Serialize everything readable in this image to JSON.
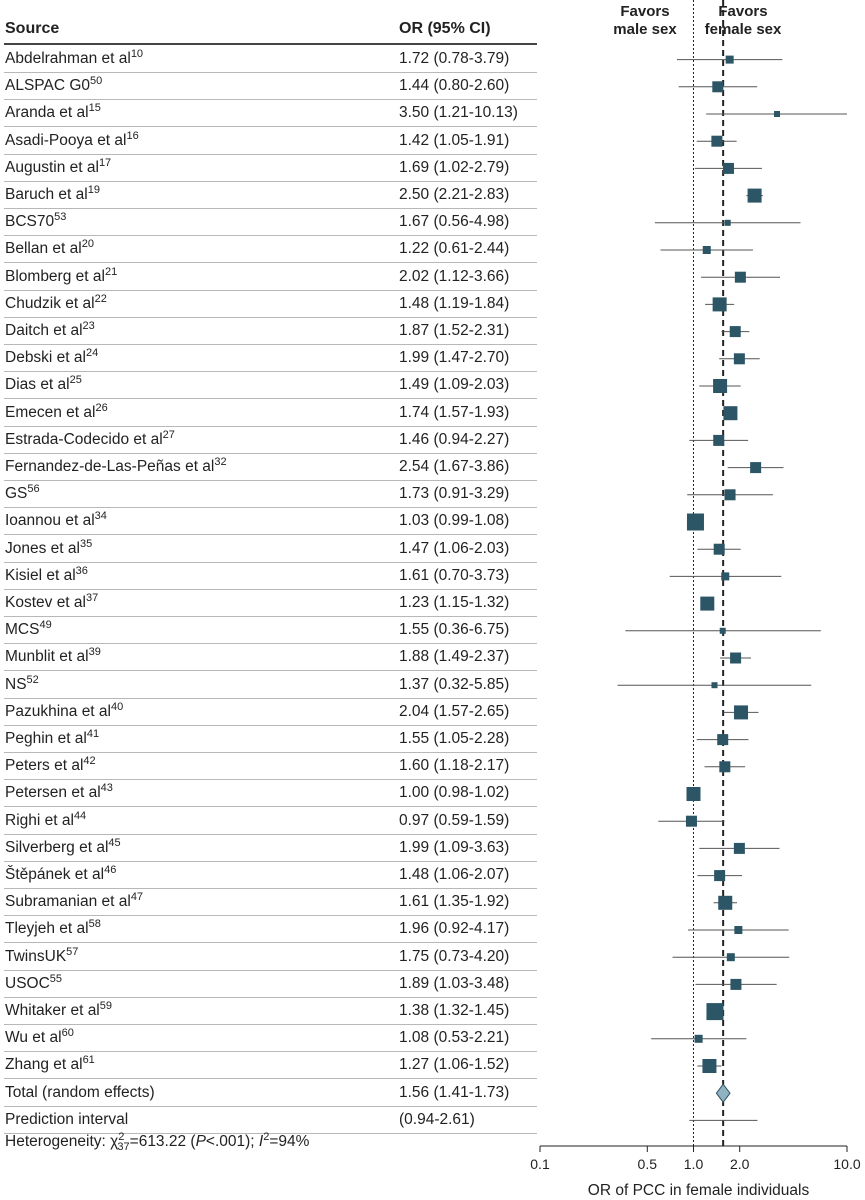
{
  "header": {
    "source": "Source",
    "or": "OR (95% CI)"
  },
  "favors": {
    "male": [
      "Favors",
      "male sex"
    ],
    "female": [
      "Favors",
      "female sex"
    ]
  },
  "footer": {
    "heterogeneity_label": "Heterogeneity: χ",
    "chi_sub": "37",
    "chi_sup": "2",
    "chi_value": "=613.22 (",
    "p_letter": "P",
    "p_value": "<.001); ",
    "i_letter": "I",
    "i_sup": "2",
    "i_value": "=94%"
  },
  "chart_data": {
    "type": "forest",
    "xlabel": "OR of PCC in female individuals",
    "xscale": "log",
    "xlim": [
      0.1,
      10.0
    ],
    "xticks": [
      {
        "v": 0.1,
        "label": "0.1"
      },
      {
        "v": 0.5,
        "label": "0.5"
      },
      {
        "v": 1.0,
        "label": "1.0"
      },
      {
        "v": 2.0,
        "label": "2.0"
      },
      {
        "v": 10.0,
        "label": "10.0"
      }
    ],
    "null_line": 1.0,
    "pooled_line": 1.56,
    "studies": [
      {
        "name": "Abdelrahman et al",
        "ref": "10",
        "ci_text": "1.72 (0.78-3.79)",
        "or": 1.72,
        "lo": 0.78,
        "hi": 3.79,
        "weight": 1
      },
      {
        "name": "ALSPAC G0",
        "ref": "50",
        "ci_text": "1.44 (0.80-2.60)",
        "or": 1.44,
        "lo": 0.8,
        "hi": 2.6,
        "weight": 2
      },
      {
        "name": "Aranda et al",
        "ref": "15",
        "ci_text": "3.50 (1.21-10.13)",
        "or": 3.5,
        "lo": 1.21,
        "hi": 10.13,
        "weight": 0
      },
      {
        "name": "Asadi-Pooya et al",
        "ref": "16",
        "ci_text": "1.42 (1.05-1.91)",
        "or": 1.42,
        "lo": 1.05,
        "hi": 1.91,
        "weight": 2
      },
      {
        "name": "Augustin et al",
        "ref": "17",
        "ci_text": "1.69 (1.02-2.79)",
        "or": 1.69,
        "lo": 1.02,
        "hi": 2.79,
        "weight": 2
      },
      {
        "name": "Baruch et al",
        "ref": "19",
        "ci_text": "2.50 (2.21-2.83)",
        "or": 2.5,
        "lo": 2.21,
        "hi": 2.83,
        "weight": 3
      },
      {
        "name": "BCS70",
        "ref": "53",
        "ci_text": "1.67 (0.56-4.98)",
        "or": 1.67,
        "lo": 0.56,
        "hi": 4.98,
        "weight": 0
      },
      {
        "name": "Bellan et al",
        "ref": "20",
        "ci_text": "1.22 (0.61-2.44)",
        "or": 1.22,
        "lo": 0.61,
        "hi": 2.44,
        "weight": 1
      },
      {
        "name": "Blomberg et al",
        "ref": "21",
        "ci_text": "2.02 (1.12-3.66)",
        "or": 2.02,
        "lo": 1.12,
        "hi": 3.66,
        "weight": 2
      },
      {
        "name": "Chudzik et al",
        "ref": "22",
        "ci_text": "1.48 (1.19-1.84)",
        "or": 1.48,
        "lo": 1.19,
        "hi": 1.84,
        "weight": 3
      },
      {
        "name": "Daitch et al",
        "ref": "23",
        "ci_text": "1.87 (1.52-2.31)",
        "or": 1.87,
        "lo": 1.52,
        "hi": 2.31,
        "weight": 2
      },
      {
        "name": "Debski et al",
        "ref": "24",
        "ci_text": "1.99 (1.47-2.70)",
        "or": 1.99,
        "lo": 1.47,
        "hi": 2.7,
        "weight": 2
      },
      {
        "name": "Dias et al",
        "ref": "25",
        "ci_text": "1.49 (1.09-2.03)",
        "or": 1.49,
        "lo": 1.09,
        "hi": 2.03,
        "weight": 3
      },
      {
        "name": "Emecen et al",
        "ref": "26",
        "ci_text": "1.74 (1.57-1.93)",
        "or": 1.74,
        "lo": 1.57,
        "hi": 1.93,
        "weight": 3
      },
      {
        "name": "Estrada-Codecido et al",
        "ref": "27",
        "ci_text": "1.46 (0.94-2.27)",
        "or": 1.46,
        "lo": 0.94,
        "hi": 2.27,
        "weight": 2
      },
      {
        "name": "Fernandez-de-Las-Peñas et al",
        "ref": "32",
        "ci_text": "2.54 (1.67-3.86)",
        "or": 2.54,
        "lo": 1.67,
        "hi": 3.86,
        "weight": 2
      },
      {
        "name": "GS",
        "ref": "56",
        "ci_text": "1.73 (0.91-3.29)",
        "or": 1.73,
        "lo": 0.91,
        "hi": 3.29,
        "weight": 2
      },
      {
        "name": "Ioannou et al",
        "ref": "34",
        "ci_text": "1.03 (0.99-1.08)",
        "or": 1.03,
        "lo": 0.99,
        "hi": 1.08,
        "weight": 4
      },
      {
        "name": "Jones et al",
        "ref": "35",
        "ci_text": "1.47 (1.06-2.03)",
        "or": 1.47,
        "lo": 1.06,
        "hi": 2.03,
        "weight": 2
      },
      {
        "name": "Kisiel et al",
        "ref": "36",
        "ci_text": "1.61 (0.70-3.73)",
        "or": 1.61,
        "lo": 0.7,
        "hi": 3.73,
        "weight": 1
      },
      {
        "name": "Kostev et al",
        "ref": "37",
        "ci_text": "1.23 (1.15-1.32)",
        "or": 1.23,
        "lo": 1.15,
        "hi": 1.32,
        "weight": 3
      },
      {
        "name": "MCS",
        "ref": "49",
        "ci_text": "1.55 (0.36-6.75)",
        "or": 1.55,
        "lo": 0.36,
        "hi": 6.75,
        "weight": 0
      },
      {
        "name": "Munblit et al",
        "ref": "39",
        "ci_text": "1.88 (1.49-2.37)",
        "or": 1.88,
        "lo": 1.49,
        "hi": 2.37,
        "weight": 2
      },
      {
        "name": "NS",
        "ref": "52",
        "ci_text": "1.37 (0.32-5.85)",
        "or": 1.37,
        "lo": 0.32,
        "hi": 5.85,
        "weight": 0
      },
      {
        "name": "Pazukhina et al",
        "ref": "40",
        "ci_text": "2.04 (1.57-2.65)",
        "or": 2.04,
        "lo": 1.57,
        "hi": 2.65,
        "weight": 3
      },
      {
        "name": "Peghin et al",
        "ref": "41",
        "ci_text": "1.55 (1.05-2.28)",
        "or": 1.55,
        "lo": 1.05,
        "hi": 2.28,
        "weight": 2
      },
      {
        "name": "Peters et al",
        "ref": "42",
        "ci_text": "1.60 (1.18-2.17)",
        "or": 1.6,
        "lo": 1.18,
        "hi": 2.17,
        "weight": 2
      },
      {
        "name": "Petersen et al",
        "ref": "43",
        "ci_text": "1.00 (0.98-1.02)",
        "or": 1.0,
        "lo": 0.98,
        "hi": 1.02,
        "weight": 3
      },
      {
        "name": "Righi et al",
        "ref": "44",
        "ci_text": "0.97 (0.59-1.59)",
        "or": 0.97,
        "lo": 0.59,
        "hi": 1.59,
        "weight": 2
      },
      {
        "name": "Silverberg et al",
        "ref": "45",
        "ci_text": "1.99 (1.09-3.63)",
        "or": 1.99,
        "lo": 1.09,
        "hi": 3.63,
        "weight": 2
      },
      {
        "name": "Štěpánek et al",
        "ref": "46",
        "ci_text": "1.48 (1.06-2.07)",
        "or": 1.48,
        "lo": 1.06,
        "hi": 2.07,
        "weight": 2
      },
      {
        "name": "Subramanian et al",
        "ref": "47",
        "ci_text": "1.61 (1.35-1.92)",
        "or": 1.61,
        "lo": 1.35,
        "hi": 1.92,
        "weight": 3
      },
      {
        "name": "Tleyjeh et al",
        "ref": "58",
        "ci_text": "1.96 (0.92-4.17)",
        "or": 1.96,
        "lo": 0.92,
        "hi": 4.17,
        "weight": 1
      },
      {
        "name": "TwinsUK",
        "ref": "57",
        "ci_text": "1.75 (0.73-4.20)",
        "or": 1.75,
        "lo": 0.73,
        "hi": 4.2,
        "weight": 1
      },
      {
        "name": "USOC",
        "ref": "55",
        "ci_text": "1.89 (1.03-3.48)",
        "or": 1.89,
        "lo": 1.03,
        "hi": 3.48,
        "weight": 2
      },
      {
        "name": "Whitaker et al",
        "ref": "59",
        "ci_text": "1.38 (1.32-1.45)",
        "or": 1.38,
        "lo": 1.32,
        "hi": 1.45,
        "weight": 4
      },
      {
        "name": "Wu et al",
        "ref": "60",
        "ci_text": "1.08 (0.53-2.21)",
        "or": 1.08,
        "lo": 0.53,
        "hi": 2.21,
        "weight": 1
      },
      {
        "name": "Zhang et al",
        "ref": "61",
        "ci_text": "1.27 (1.06-1.52)",
        "or": 1.27,
        "lo": 1.06,
        "hi": 1.52,
        "weight": 3
      }
    ],
    "summary": {
      "name": "Total (random effects)",
      "ci_text": "1.56 (1.41-1.73)",
      "or": 1.56,
      "lo": 1.41,
      "hi": 1.73
    },
    "prediction": {
      "name": "Prediction interval",
      "ci_text": "(0.94-2.61)",
      "lo": 0.94,
      "hi": 2.61
    },
    "colors": {
      "marker": "#2c5566",
      "diamond": "#8fb3c1",
      "diamond_edge": "#2c5566",
      "ci_line": "#555555",
      "ref_line": "#222222"
    }
  }
}
